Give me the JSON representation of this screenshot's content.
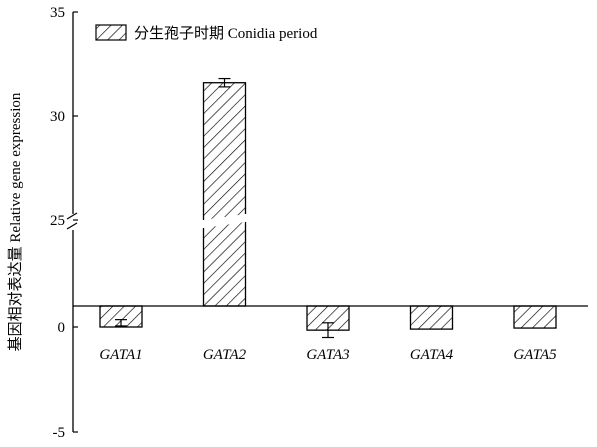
{
  "chart_data": {
    "type": "bar",
    "categories": [
      "GATA1",
      "GATA2",
      "GATA3",
      "GATA4",
      "GATA5"
    ],
    "series": [
      {
        "name": "分生孢子时期 Conidia period",
        "values": [
          0.2,
          31.6,
          -0.15,
          -0.1,
          -0.05
        ],
        "errors": [
          0.15,
          0.2,
          0.35,
          0.0,
          0.0
        ],
        "pattern": "diagonal-hatch"
      }
    ],
    "ylabel": "基因相对表达量 Relative gene expression",
    "xlabel": "",
    "yticks": [
      {
        "value": -5,
        "label": "-5"
      },
      {
        "value": 0,
        "label": "0"
      },
      {
        "value": 25,
        "label": "25"
      },
      {
        "value": 30,
        "label": "30"
      },
      {
        "value": 35,
        "label": "35"
      }
    ],
    "ylim": [
      -5,
      35
    ],
    "axis_break": [
      1,
      25
    ],
    "legend_position": "top-left",
    "grid": false,
    "colors": {
      "bar_fill": "#ffffff",
      "hatch": "#000000",
      "axis": "#000000"
    }
  }
}
